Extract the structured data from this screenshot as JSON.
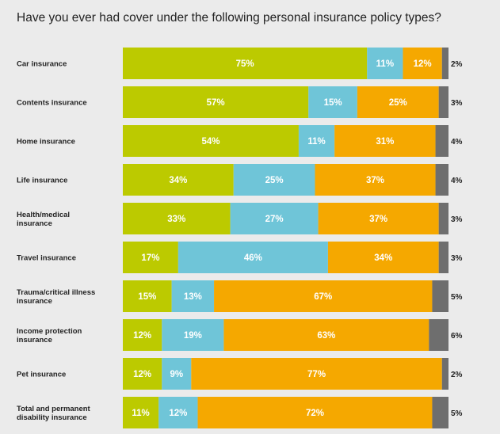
{
  "title": "Have you ever had cover under the following personal insurance policy types?",
  "chart_data": {
    "type": "bar",
    "orientation": "horizontal",
    "stacked": true,
    "title": "Have you ever had cover under the following personal insurance policy types?",
    "categories": [
      [
        "Car insurance"
      ],
      [
        "Contents insurance"
      ],
      [
        "Home insurance"
      ],
      [
        "Life insurance"
      ],
      [
        "Health/medical",
        "insurance"
      ],
      [
        "Travel insurance"
      ],
      [
        "Trauma/critical illness",
        "insurance"
      ],
      [
        "Income protection",
        "insurance"
      ],
      [
        "Pet insurance"
      ],
      [
        "Total and permanent",
        "disability insurance"
      ]
    ],
    "series": [
      {
        "values": [
          75,
          57,
          54,
          34,
          33,
          17,
          15,
          12,
          12,
          11
        ]
      },
      {
        "values": [
          11,
          15,
          11,
          25,
          27,
          46,
          13,
          19,
          9,
          12
        ]
      },
      {
        "values": [
          12,
          25,
          31,
          37,
          37,
          34,
          67,
          63,
          77,
          72
        ]
      },
      {
        "values": [
          2,
          3,
          4,
          4,
          3,
          3,
          5,
          6,
          2,
          5
        ]
      }
    ],
    "colors": [
      "#bcca00",
      "#6fc5d8",
      "#f5a800",
      "#6e6e6e"
    ],
    "value_suffix": "%",
    "legend": "none",
    "grid": false
  }
}
